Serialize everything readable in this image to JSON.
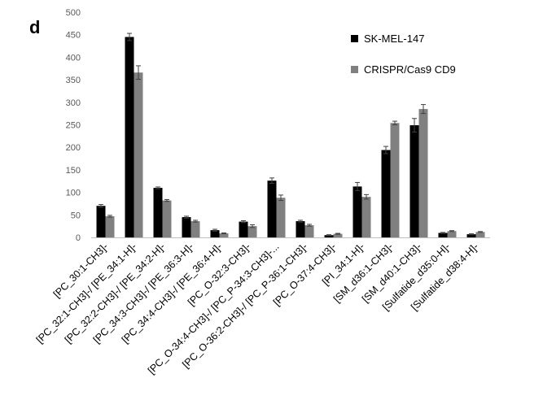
{
  "panel_label": "d",
  "chart_data": {
    "type": "bar",
    "ylim": [
      0,
      500
    ],
    "yticks": [
      0,
      50,
      100,
      150,
      200,
      250,
      300,
      350,
      400,
      450,
      500
    ],
    "grid": false,
    "legend_position": "top-right",
    "categories": [
      "[PC_30:1-CH3]-",
      "[PC_32:1-CH3]-/ [PE_34:1-H]-",
      "[PC_32:2-CH3]-/ [PE_34:2-H]-",
      "[PC_34:3-CH3]-/ [PE_36:3-H]-",
      "[PC_34:4-CH3]-/ [PE_36:4-H]-",
      "[PC_O-32:3-CH3]-",
      "[PC_O-34:4-CH3]-/ [PC_P-34:3-CH3]-...",
      "[PC_O-36:2-CH3]-/ [PC_P-36:1-CH3]-",
      "[PC_O-37:4-CH3]-",
      "[PI_34:1-H]-",
      "[SM_d36:1-CH3]-",
      "[SM_d40:1-CH3]-",
      "[Sulfatide_d35:0-H]-",
      "[Sulfatide_d38:4-H]-"
    ],
    "series": [
      {
        "name": "SK-MEL-147",
        "color": "#000000",
        "values": [
          70,
          445,
          110,
          45,
          16,
          35,
          126,
          36,
          5,
          113,
          194,
          249,
          10,
          7
        ],
        "errors": [
          3,
          8,
          2,
          2,
          2,
          2,
          6,
          2,
          1,
          9,
          8,
          15,
          1,
          1
        ]
      },
      {
        "name": "CRISPR/Cas9 CD9",
        "color": "#808080",
        "values": [
          47,
          366,
          82,
          36,
          9,
          25,
          88,
          27,
          8,
          90,
          254,
          285,
          14,
          12
        ],
        "errors": [
          2,
          15,
          2,
          2,
          1,
          3,
          6,
          2,
          1,
          5,
          4,
          10,
          1,
          1
        ]
      }
    ]
  }
}
